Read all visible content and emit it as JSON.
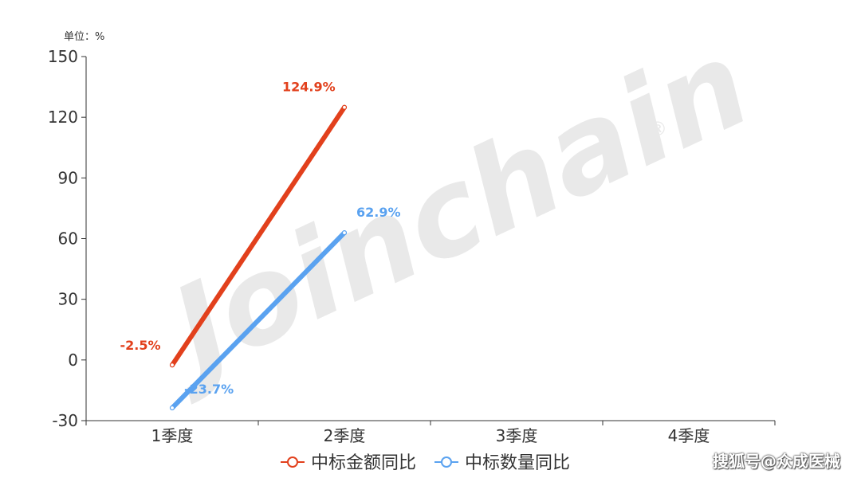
{
  "chart_data": {
    "type": "line",
    "unit_label": "单位：%",
    "categories": [
      "1季度",
      "2季度",
      "3季度",
      "4季度"
    ],
    "ylim": [
      -30,
      150
    ],
    "yticks": [
      -30,
      0,
      30,
      60,
      90,
      120,
      150
    ],
    "legend_position": "bottom-center",
    "grid": false,
    "series": [
      {
        "name": "中标金额同比",
        "color": "#e2401c",
        "values": [
          -2.5,
          124.9,
          null,
          null
        ],
        "labels": [
          "-2.5%",
          "124.9%",
          "",
          ""
        ]
      },
      {
        "name": "中标数量同比",
        "color": "#5aa2f0",
        "values": [
          -23.7,
          62.9,
          null,
          null
        ],
        "labels": [
          "-23.7%",
          "62.9%",
          "",
          ""
        ]
      }
    ]
  },
  "watermark": {
    "text": "Joinchain",
    "registered": "®"
  },
  "credit": "搜狐号@众成医械"
}
